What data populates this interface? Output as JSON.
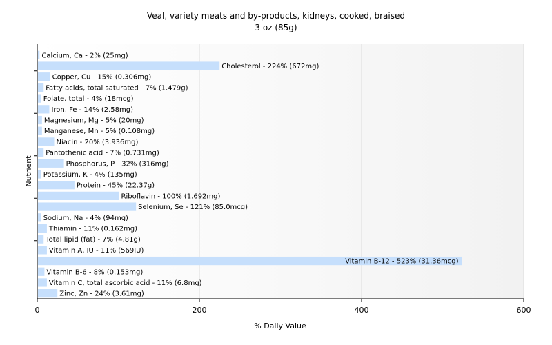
{
  "chart_data": {
    "type": "bar",
    "orientation": "horizontal",
    "title": "Veal, variety meats and by-products, kidneys, cooked, braised",
    "subtitle": "3 oz (85g)",
    "xlabel": "% Daily Value",
    "ylabel": "Nutrient",
    "xlim": [
      0,
      600
    ],
    "xticks": [
      0,
      200,
      400,
      600
    ],
    "grid": true,
    "bar_color": "#c6dffc",
    "categories": [
      "Calcium, Ca",
      "Cholesterol",
      "Copper, Cu",
      "Fatty acids, total saturated",
      "Folate, total",
      "Iron, Fe",
      "Magnesium, Mg",
      "Manganese, Mn",
      "Niacin",
      "Pantothenic acid",
      "Phosphorus, P",
      "Potassium, K",
      "Protein",
      "Riboflavin",
      "Selenium, Se",
      "Sodium, Na",
      "Thiamin",
      "Total lipid (fat)",
      "Vitamin A, IU",
      "Vitamin B-12",
      "Vitamin B-6",
      "Vitamin C, total ascorbic acid",
      "Zinc, Zn"
    ],
    "values": [
      2,
      224,
      15,
      7,
      4,
      14,
      5,
      5,
      20,
      7,
      32,
      4,
      45,
      100,
      121,
      4,
      11,
      7,
      11,
      523,
      8,
      11,
      24
    ],
    "labels": [
      "Calcium, Ca - 2% (25mg)",
      "Cholesterol - 224% (672mg)",
      "Copper, Cu - 15% (0.306mg)",
      "Fatty acids, total saturated - 7% (1.479g)",
      "Folate, total - 4% (18mcg)",
      "Iron, Fe - 14% (2.58mg)",
      "Magnesium, Mg - 5% (20mg)",
      "Manganese, Mn - 5% (0.108mg)",
      "Niacin - 20% (3.936mg)",
      "Pantothenic acid - 7% (0.731mg)",
      "Phosphorus, P - 32% (316mg)",
      "Potassium, K - 4% (135mg)",
      "Protein - 45% (22.37g)",
      "Riboflavin - 100% (1.692mg)",
      "Selenium, Se - 121% (85.0mcg)",
      "Sodium, Na - 4% (94mg)",
      "Thiamin - 11% (0.162mg)",
      "Total lipid (fat) - 7% (4.81g)",
      "Vitamin A, IU - 11% (569IU)",
      "Vitamin B-12 - 523% (31.36mcg)",
      "Vitamin B-6 - 8% (0.153mg)",
      "Vitamin C, total ascorbic acid - 11% (6.8mg)",
      "Zinc, Zn - 24% (3.61mg)"
    ]
  }
}
